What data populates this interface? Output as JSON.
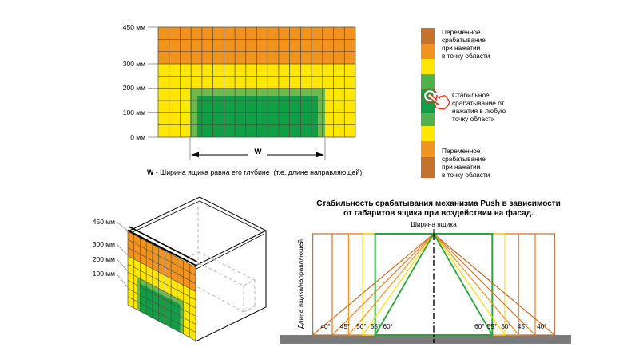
{
  "colors": {
    "orange_dark": "#c4722c",
    "orange": "#f0931f",
    "yellow": "#ffe605",
    "green_light": "#6fb94d",
    "green_mid": "#4fb24a",
    "green": "#129e45",
    "line_40": "#c4702e",
    "line_45": "#e07c27",
    "line_50": "#f39420",
    "line_55": "#ffdf00",
    "line_60": "#2aa53c",
    "ground": "#7b7b7b",
    "hand_red": "#d93b1c"
  },
  "grid_diagram": {
    "columns": 18,
    "rows": 9,
    "orange_rows": 3,
    "y_axis": [
      {
        "label": "450 мм",
        "mm": 450
      },
      {
        "label": "300 мм",
        "mm": 300
      },
      {
        "label": "200 мм",
        "mm": 200
      },
      {
        "label": "100 мм",
        "mm": 100
      },
      {
        "label": "0 мм",
        "mm": 0
      }
    ],
    "w_label": "W",
    "caption_prefix": "W",
    "caption_text": " - Ширина ящика равна его глубине  (т.е. длине направляющей)"
  },
  "legend": {
    "segments": [
      "orange_dark",
      "orange",
      "yellow",
      "green_mid",
      "green",
      "green_mid",
      "yellow",
      "orange",
      "orange_dark"
    ],
    "texts": {
      "top": "Переменное\nсрабатывание\nпри нажатии\nв точку области",
      "middle": "Стабильное\nсрабатывание от\nнажатия в любую\nточку области",
      "bottom": "Переменное\nсрабатывание\nпри нажатии\nв точку области"
    },
    "hand_icon": "press-hand-icon"
  },
  "iso_diagram": {
    "labels": [
      {
        "label": "450 мм",
        "mm": 450
      },
      {
        "label": "300 мм",
        "mm": 300
      },
      {
        "label": "200 мм",
        "mm": 200
      },
      {
        "label": "100 мм",
        "mm": 100
      }
    ]
  },
  "push_chart": {
    "title": "Стабильность срабатывания механизма Push в зависимости\nот габаритов ящика при воздействии на фасад.",
    "top_label": "Ширина ящика",
    "y_label": "Длина ящика/направляющей",
    "angles": [
      {
        "deg": 40,
        "label": "40°",
        "color_key": "line_40"
      },
      {
        "deg": 45,
        "label": "45°",
        "color_key": "line_45"
      },
      {
        "deg": 50,
        "label": "50°",
        "color_key": "line_50"
      },
      {
        "deg": 55,
        "label": "55°",
        "color_key": "line_55"
      },
      {
        "deg": 60,
        "label": "60°",
        "color_key": "line_60"
      }
    ]
  },
  "chart_data": {
    "type": "line",
    "title": "Стабильность срабатывания механизма Push в зависимости от габаритов ящика при воздействии на фасад.",
    "xlabel": "Ширина ящика",
    "ylabel": "Длина ящика/направляющей",
    "series": [
      {
        "name": "40°",
        "angle_deg": 40,
        "color": "#c4702e",
        "zone": "переменное срабатывание"
      },
      {
        "name": "45°",
        "angle_deg": 45,
        "color": "#e07c27",
        "zone": "переменное срабатывание"
      },
      {
        "name": "50°",
        "angle_deg": 50,
        "color": "#f39420",
        "zone": "переменное срабатывание"
      },
      {
        "name": "55°",
        "angle_deg": 55,
        "color": "#ffdf00",
        "zone": "переменное срабатывание"
      },
      {
        "name": "60°",
        "angle_deg": 60,
        "color": "#2aa53c",
        "zone": "стабильное срабатывание"
      }
    ],
    "legend_position": "none",
    "grid": false
  }
}
